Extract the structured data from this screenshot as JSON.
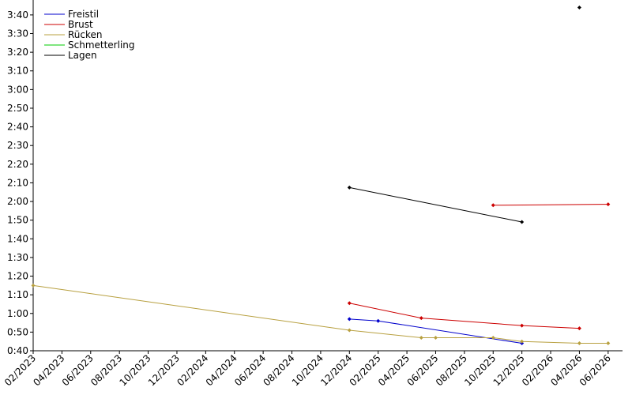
{
  "chart_data": {
    "type": "line",
    "xlim": [
      "2023-02",
      "2026-07"
    ],
    "xticks": [
      {
        "value": "2023-02",
        "label": "02/2023"
      },
      {
        "value": "2023-04",
        "label": "04/2023"
      },
      {
        "value": "2023-06",
        "label": "06/2023"
      },
      {
        "value": "2023-08",
        "label": "08/2023"
      },
      {
        "value": "2023-10",
        "label": "10/2023"
      },
      {
        "value": "2023-12",
        "label": "12/2023"
      },
      {
        "value": "2024-02",
        "label": "02/2024"
      },
      {
        "value": "2024-04",
        "label": "04/2024"
      },
      {
        "value": "2024-06",
        "label": "06/2024"
      },
      {
        "value": "2024-08",
        "label": "08/2024"
      },
      {
        "value": "2024-10",
        "label": "10/2024"
      },
      {
        "value": "2024-12",
        "label": "12/2024"
      },
      {
        "value": "2025-02",
        "label": "02/2025"
      },
      {
        "value": "2025-04",
        "label": "04/2025"
      },
      {
        "value": "2025-06",
        "label": "06/2025"
      },
      {
        "value": "2025-08",
        "label": "08/2025"
      },
      {
        "value": "2025-10",
        "label": "10/2025"
      },
      {
        "value": "2025-12",
        "label": "12/2025"
      },
      {
        "value": "2026-02",
        "label": "02/2026"
      },
      {
        "value": "2026-04",
        "label": "04/2026"
      },
      {
        "value": "2026-06",
        "label": "06/2026"
      }
    ],
    "ylim": [
      40,
      228
    ],
    "yticks": [
      {
        "value": 40,
        "label": "0:40"
      },
      {
        "value": 50,
        "label": "0:50"
      },
      {
        "value": 60,
        "label": "1:00"
      },
      {
        "value": 70,
        "label": "1:10"
      },
      {
        "value": 80,
        "label": "1:20"
      },
      {
        "value": 90,
        "label": "1:30"
      },
      {
        "value": 100,
        "label": "1:40"
      },
      {
        "value": 110,
        "label": "1:50"
      },
      {
        "value": 120,
        "label": "2:00"
      },
      {
        "value": 130,
        "label": "2:10"
      },
      {
        "value": 140,
        "label": "2:20"
      },
      {
        "value": 150,
        "label": "2:30"
      },
      {
        "value": 160,
        "label": "2:40"
      },
      {
        "value": 170,
        "label": "2:50"
      },
      {
        "value": 180,
        "label": "3:00"
      },
      {
        "value": 190,
        "label": "3:10"
      },
      {
        "value": 200,
        "label": "3:20"
      },
      {
        "value": 210,
        "label": "3:30"
      },
      {
        "value": 220,
        "label": "3:40"
      }
    ],
    "legend": "top-left",
    "series": [
      {
        "name": "Freistil",
        "color": "#0000cc",
        "x": [
          "2024-12",
          "2025-02",
          "2025-12"
        ],
        "values": [
          57,
          56,
          44
        ]
      },
      {
        "name": "Brust",
        "color": "#cc0000",
        "x": [
          "2024-12",
          "2025-05",
          "2025-12",
          "2026-04",
          null,
          "2025-10",
          "2026-06"
        ],
        "values": [
          65.5,
          57.5,
          53.5,
          52,
          null,
          118,
          118.5
        ]
      },
      {
        "name": "Rücken",
        "color": "#b8a040",
        "x": [
          "2023-02",
          "2024-12",
          "2025-05",
          "2025-06",
          "2025-10",
          "2025-12",
          "2026-04",
          "2026-06"
        ],
        "values": [
          75,
          51,
          47,
          47,
          47,
          45,
          44,
          44
        ]
      },
      {
        "name": "Schmetterling",
        "color": "#00cc00",
        "x": [],
        "values": []
      },
      {
        "name": "Lagen",
        "color": "#000000",
        "x": [
          "2024-12",
          "2025-12",
          null,
          "2026-04"
        ],
        "values": [
          127.5,
          109,
          null,
          224
        ]
      }
    ]
  }
}
